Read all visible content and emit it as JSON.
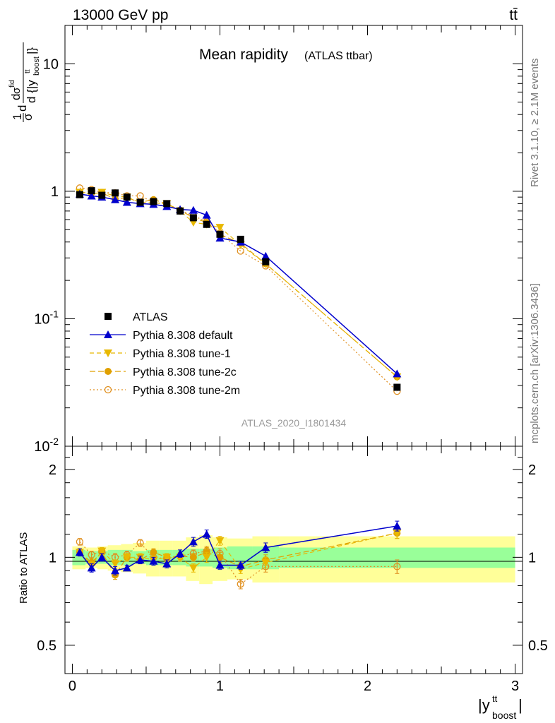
{
  "header": {
    "left": "13000 GeV pp",
    "right": "tt̄",
    "side_top": "Rivet 3.1.10, ≥ 2.1M events",
    "side_bottom": "mcplots.cern.ch [arXiv:1306.3436]"
  },
  "colors": {
    "atlas": "#000000",
    "default": "#0000cc",
    "tune1": "#e8b800",
    "tune2c": "#e0a000",
    "tune2m": "#e09020",
    "band_inner": "#99ff99",
    "band_outer": "#ffff99"
  },
  "chart_data": [
    {
      "type": "line",
      "title": "Mean rapidity",
      "subtitle": "(ATLAS ttbar)",
      "watermark": "ATLAS_2020_I1801434",
      "ylabel": "1/σ dσ/d|y_boost^tt|",
      "yscale": "log",
      "ylim": [
        0.01,
        20
      ],
      "xlim": [
        -0.05,
        3.05
      ],
      "y_tick_labels": [
        "10^-2",
        "10^-1",
        "1",
        "10"
      ],
      "legend_position": "bottom-left",
      "x": [
        0.05,
        0.13,
        0.2,
        0.29,
        0.37,
        0.46,
        0.55,
        0.64,
        0.73,
        0.82,
        0.91,
        1.0,
        1.14,
        1.31,
        2.2
      ],
      "series": [
        {
          "name": "ATLAS",
          "marker": "square",
          "values": [
            0.94,
            1.01,
            0.93,
            0.97,
            0.9,
            0.82,
            0.83,
            0.8,
            0.7,
            0.62,
            0.55,
            0.46,
            0.42,
            0.28,
            0.029
          ]
        },
        {
          "name": "Pythia 8.308 default",
          "marker": "triangle-up",
          "values": [
            0.95,
            0.92,
            0.9,
            0.86,
            0.82,
            0.8,
            0.79,
            0.76,
            0.72,
            0.71,
            0.65,
            0.43,
            0.4,
            0.31,
            0.037
          ]
        },
        {
          "name": "Pythia 8.308 tune-1",
          "marker": "triangle-down",
          "values": [
            0.98,
            0.95,
            0.98,
            0.92,
            0.9,
            0.82,
            0.81,
            0.8,
            0.7,
            0.57,
            0.55,
            0.52,
            0.38,
            0.27,
            0.035
          ]
        },
        {
          "name": "Pythia 8.308 tune-2c",
          "marker": "circle",
          "values": [
            0.98,
            0.97,
            0.97,
            0.87,
            0.89,
            0.82,
            0.86,
            0.8,
            0.71,
            0.62,
            0.57,
            0.46,
            0.39,
            0.27,
            0.035
          ]
        },
        {
          "name": "Pythia 8.308 tune-2m",
          "marker": "circle-open",
          "values": [
            1.06,
            1.03,
            0.98,
            0.97,
            0.92,
            0.92,
            0.82,
            0.79,
            0.71,
            0.64,
            0.58,
            0.47,
            0.34,
            0.26,
            0.027
          ]
        }
      ]
    },
    {
      "type": "line",
      "ylabel": "Ratio to ATLAS",
      "xlabel": "|y_boost^tt|",
      "yscale": "log",
      "ylim": [
        0.4,
        2.4
      ],
      "xlim": [
        -0.05,
        3.05
      ],
      "x_ticks": [
        0,
        1,
        2,
        3
      ],
      "y_ticks": [
        0.5,
        1,
        2
      ],
      "x": [
        0.05,
        0.13,
        0.2,
        0.29,
        0.37,
        0.46,
        0.55,
        0.64,
        0.73,
        0.82,
        0.91,
        1.0,
        1.14,
        1.31,
        2.2
      ],
      "bins": [
        [
          0,
          0.09
        ],
        [
          0.09,
          0.17
        ],
        [
          0.17,
          0.24
        ],
        [
          0.24,
          0.33
        ],
        [
          0.33,
          0.41
        ],
        [
          0.41,
          0.5
        ],
        [
          0.5,
          0.59
        ],
        [
          0.59,
          0.68
        ],
        [
          0.68,
          0.77
        ],
        [
          0.77,
          0.86
        ],
        [
          0.86,
          0.95
        ],
        [
          0.95,
          1.05
        ],
        [
          1.05,
          1.22
        ],
        [
          1.22,
          1.4
        ],
        [
          1.4,
          3.0
        ]
      ],
      "band_inner": [
        0.06,
        0.05,
        0.05,
        0.06,
        0.06,
        0.05,
        0.06,
        0.06,
        0.06,
        0.07,
        0.07,
        0.08,
        0.09,
        0.09,
        0.08
      ],
      "band_outer": [
        0.09,
        0.08,
        0.09,
        0.1,
        0.11,
        0.12,
        0.14,
        0.14,
        0.14,
        0.17,
        0.19,
        0.17,
        0.16,
        0.18,
        0.18
      ],
      "series": [
        {
          "name": "Pythia 8.308 default",
          "values": [
            1.04,
            0.92,
            1.0,
            0.9,
            0.92,
            0.98,
            0.97,
            0.95,
            1.03,
            1.13,
            1.2,
            0.94,
            0.94,
            1.08,
            1.28
          ],
          "errors": [
            0.03,
            0.03,
            0.03,
            0.03,
            0.02,
            0.03,
            0.03,
            0.03,
            0.03,
            0.04,
            0.04,
            0.03,
            0.03,
            0.04,
            0.05
          ]
        },
        {
          "name": "Pythia 8.308 tune-1",
          "values": [
            1.04,
            0.94,
            1.05,
            0.95,
            1.0,
            1.0,
            0.98,
            1.0,
            1.0,
            0.92,
            1.0,
            1.14,
            0.91,
            0.96,
            1.21
          ],
          "errors": [
            0.03,
            0.03,
            0.03,
            0.03,
            0.03,
            0.03,
            0.03,
            0.03,
            0.03,
            0.03,
            0.04,
            0.04,
            0.03,
            0.04,
            0.05
          ]
        },
        {
          "name": "Pythia 8.308 tune-2c",
          "values": [
            1.04,
            0.96,
            1.04,
            0.87,
            1.0,
            0.98,
            1.04,
            1.0,
            1.01,
            1.0,
            1.04,
            1.0,
            0.93,
            0.98,
            1.21
          ],
          "errors": [
            0.03,
            0.03,
            0.03,
            0.03,
            0.03,
            0.03,
            0.03,
            0.03,
            0.03,
            0.03,
            0.04,
            0.04,
            0.03,
            0.04,
            0.05
          ]
        },
        {
          "name": "Pythia 8.308 tune-2m",
          "values": [
            1.13,
            1.02,
            1.05,
            1.0,
            1.02,
            1.12,
            1.0,
            0.99,
            1.01,
            1.03,
            1.05,
            1.03,
            0.81,
            0.93,
            0.93
          ],
          "errors": [
            0.03,
            0.03,
            0.03,
            0.03,
            0.03,
            0.03,
            0.03,
            0.03,
            0.03,
            0.03,
            0.04,
            0.04,
            0.03,
            0.04,
            0.05
          ]
        }
      ]
    }
  ]
}
